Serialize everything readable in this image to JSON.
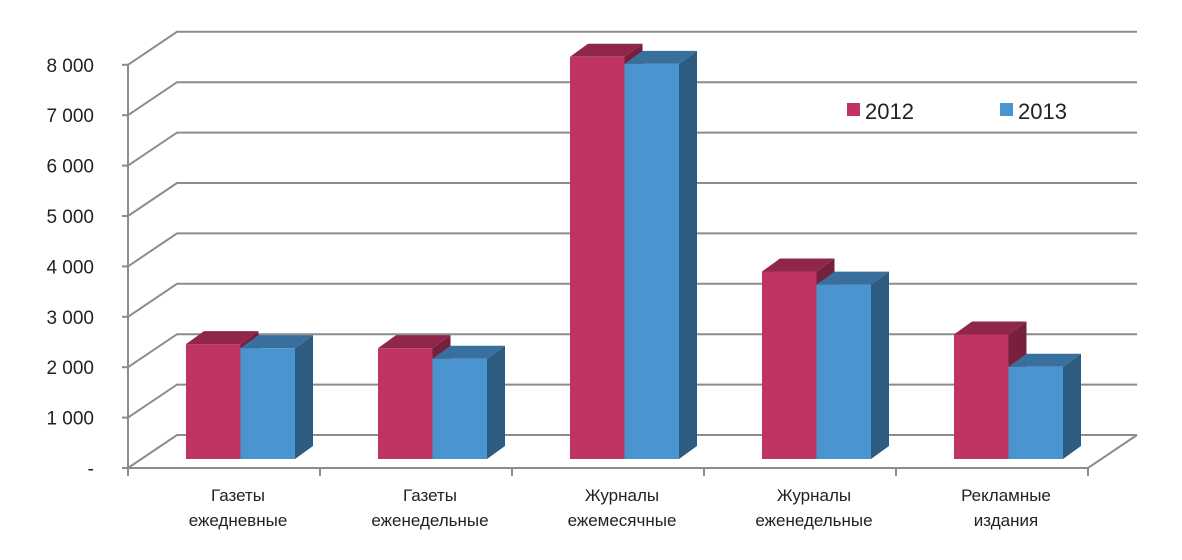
{
  "chart_data": {
    "type": "bar",
    "style": "3d-clustered-column",
    "categories": [
      [
        "Газеты",
        "ежедневные"
      ],
      [
        "Газеты",
        "еженедельные"
      ],
      [
        "Журналы",
        "ежемесячные"
      ],
      [
        "Журналы",
        "еженедельные"
      ],
      [
        "Рекламные",
        "издания"
      ]
    ],
    "series": [
      {
        "name": "2012",
        "color": "#c03462",
        "values": [
          2280,
          2200,
          7980,
          3720,
          2470
        ]
      },
      {
        "name": "2013",
        "color": "#4a94d0",
        "values": [
          2200,
          1990,
          7840,
          3460,
          1830
        ]
      }
    ],
    "yticks": [
      "-",
      "1 000",
      "2 000",
      "3 000",
      "4 000",
      "5 000",
      "6 000",
      "7 000",
      "8 000"
    ],
    "ylim": [
      0,
      8000
    ],
    "ystep": 1000,
    "grid": true,
    "legend": "top-right",
    "title": "",
    "xlabel": "",
    "ylabel": ""
  }
}
